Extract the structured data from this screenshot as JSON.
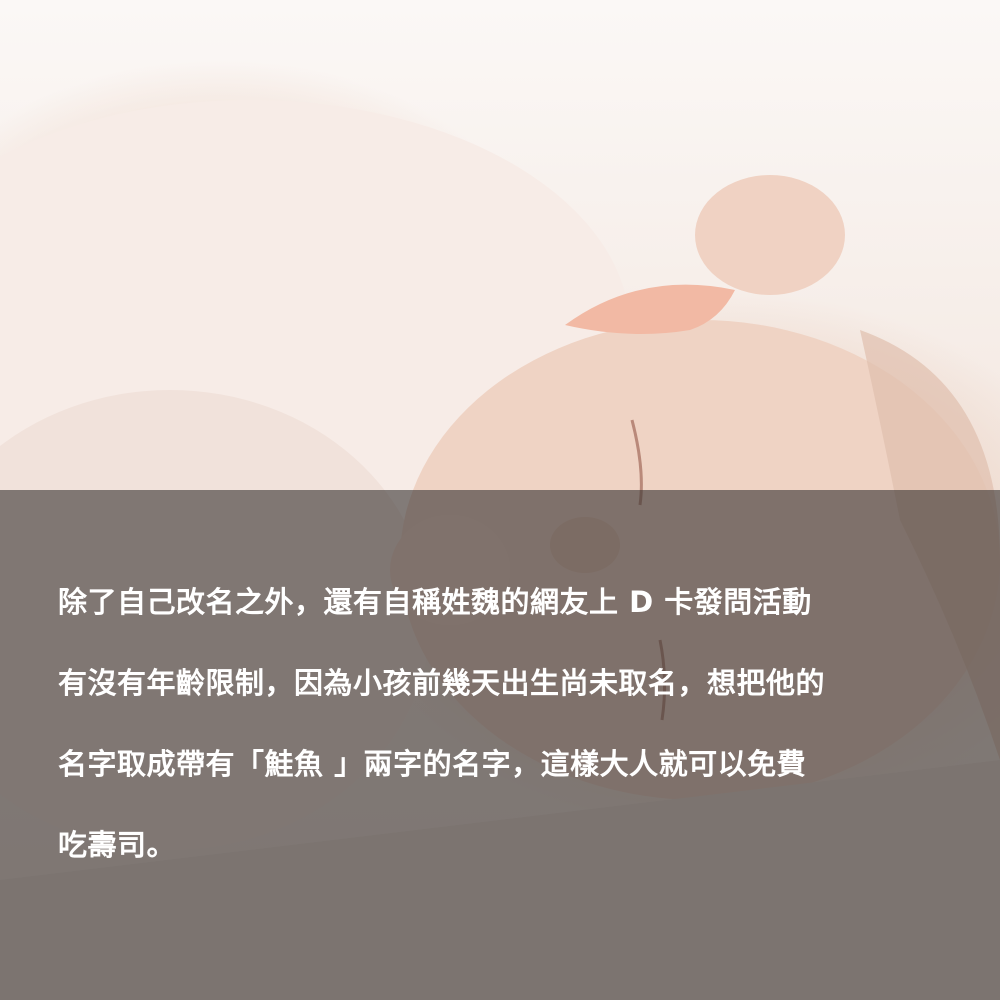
{
  "caption": {
    "lines": [
      "除了自己改名之外，還有自稱姓魏的網友上 D 卡發問活動",
      "有沒有年齡限制，因為小孩前幾天出生尚未取名，想把他的",
      "名字取成帶有「鮭魚 」兩字的名字，這樣大人就可以免費",
      "吃壽司。"
    ]
  },
  "photo": {
    "subject": "sleeping-baby"
  },
  "colors": {
    "overlay": "#3a3634",
    "text": "#ffffff",
    "skin": "#efd3c4",
    "clothing": "#f6e8e2",
    "bow": "#f2b9a4"
  }
}
